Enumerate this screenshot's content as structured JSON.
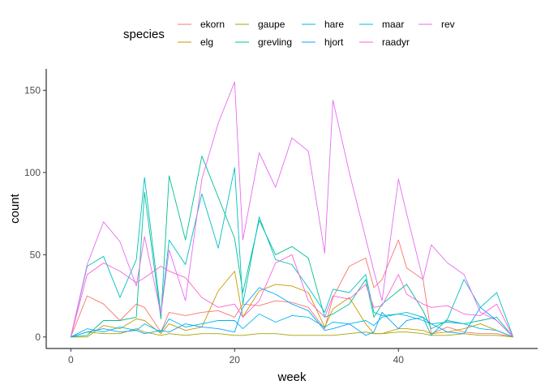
{
  "chart_data": {
    "type": "line",
    "xlabel": "week",
    "ylabel": "count",
    "xlim": [
      -3,
      57
    ],
    "ylim": [
      -7,
      163
    ],
    "x_ticks": [
      0,
      20,
      40
    ],
    "y_ticks": [
      0,
      50,
      100,
      150
    ],
    "grid": false,
    "legend": {
      "title": "species",
      "position": "top"
    },
    "x": [
      0,
      2,
      4,
      6,
      8,
      9,
      11,
      12,
      14,
      16,
      18,
      20,
      21,
      23,
      25,
      27,
      29,
      31,
      32,
      34,
      36,
      37,
      38,
      40,
      41,
      43,
      44,
      46,
      48,
      50,
      52,
      54
    ],
    "series": [
      {
        "name": "ekorn",
        "color": "#F8766D",
        "values": [
          0,
          25,
          20,
          10,
          20,
          18,
          3,
          15,
          13,
          15,
          16,
          12,
          20,
          19,
          22,
          21,
          18,
          5,
          24,
          43,
          48,
          30,
          35,
          59,
          42,
          35,
          2,
          6,
          3,
          2,
          2,
          0
        ]
      },
      {
        "name": "elg",
        "color": "#C49A00",
        "values": [
          0,
          0,
          7,
          5,
          11,
          10,
          2,
          8,
          4,
          6,
          28,
          40,
          12,
          28,
          32,
          31,
          27,
          6,
          17,
          24,
          8,
          2,
          2,
          5,
          5,
          4,
          2,
          3,
          5,
          8,
          4,
          0
        ]
      },
      {
        "name": "gaupe",
        "color": "#A3A500",
        "values": [
          0,
          3,
          2,
          2,
          5,
          3,
          1,
          2,
          1,
          2,
          2,
          1,
          1,
          2,
          2,
          1,
          1,
          1,
          1,
          2,
          3,
          2,
          2,
          3,
          3,
          2,
          1,
          1,
          2,
          1,
          1,
          0
        ]
      },
      {
        "name": "grevling",
        "color": "#00C094",
        "values": [
          0,
          1,
          10,
          10,
          12,
          88,
          11,
          98,
          59,
          110,
          85,
          60,
          27,
          71,
          50,
          55,
          48,
          12,
          14,
          20,
          35,
          12,
          20,
          28,
          32,
          16,
          5,
          10,
          8,
          10,
          12,
          0
        ]
      },
      {
        "name": "hare",
        "color": "#00B6EB",
        "values": [
          0,
          5,
          3,
          6,
          4,
          8,
          3,
          11,
          6,
          8,
          10,
          10,
          5,
          14,
          9,
          13,
          12,
          6,
          9,
          8,
          10,
          7,
          12,
          14,
          13,
          10,
          8,
          9,
          8,
          5,
          4,
          0
        ]
      },
      {
        "name": "hjort",
        "color": "#06A4FF",
        "values": [
          0,
          3,
          5,
          3,
          4,
          2,
          4,
          3,
          8,
          6,
          5,
          3,
          18,
          30,
          26,
          20,
          16,
          4,
          5,
          8,
          1,
          3,
          15,
          5,
          10,
          12,
          8,
          3,
          2,
          18,
          10,
          0
        ]
      },
      {
        "name": "maar",
        "color": "#00BFC4",
        "values": [
          0,
          43,
          49,
          24,
          47,
          97,
          14,
          59,
          44,
          87,
          54,
          103,
          20,
          73,
          47,
          44,
          30,
          15,
          29,
          27,
          38,
          15,
          13,
          14,
          15,
          12,
          1,
          11,
          35,
          18,
          27,
          0
        ]
      },
      {
        "name": "raadyr",
        "color": "#FB61D7",
        "values": [
          0,
          38,
          45,
          40,
          33,
          36,
          43,
          40,
          36,
          24,
          18,
          20,
          12,
          22,
          45,
          50,
          22,
          12,
          25,
          23,
          32,
          18,
          19,
          38,
          26,
          20,
          18,
          19,
          14,
          13,
          20,
          0
        ]
      },
      {
        "name": "rev",
        "color": "#E76BF3",
        "values": [
          0,
          44,
          70,
          58,
          31,
          61,
          14,
          53,
          22,
          96,
          130,
          155,
          59,
          112,
          91,
          121,
          113,
          51,
          144,
          100,
          60,
          40,
          22,
          96,
          75,
          35,
          56,
          45,
          38,
          15,
          10,
          0
        ]
      }
    ]
  }
}
